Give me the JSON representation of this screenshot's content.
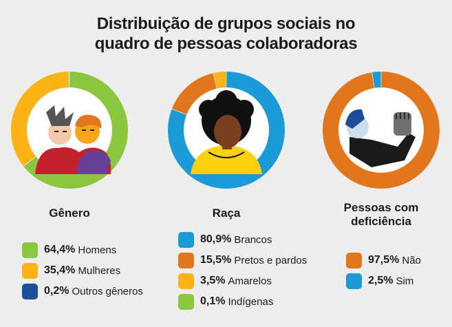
{
  "title_lines": [
    "Distribuição de grupos sociais no",
    "quadro de pessoas colaboradoras"
  ],
  "chart_data": [
    {
      "type": "pie",
      "title": "Gênero",
      "series": [
        {
          "name": "Homens",
          "value": 64.4,
          "label": "64,4%",
          "color": "#8cc63f"
        },
        {
          "name": "Mulheres",
          "value": 35.4,
          "label": "35,4%",
          "color": "#fbb316"
        },
        {
          "name": "Outros gêneros",
          "value": 0.2,
          "label": "0,2%",
          "color": "#1c4e9a"
        }
      ]
    },
    {
      "type": "pie",
      "title": "Raça",
      "series": [
        {
          "name": "Brancos",
          "value": 80.9,
          "label": "80,9%",
          "color": "#1a9ad6"
        },
        {
          "name": "Pretos e pardos",
          "value": 15.5,
          "label": "15,5%",
          "color": "#e2761c"
        },
        {
          "name": "Amarelos",
          "value": 3.5,
          "label": "3,5%",
          "color": "#fbb316"
        },
        {
          "name": "Indígenas",
          "value": 0.1,
          "label": "0,1%",
          "color": "#8cc63f"
        }
      ]
    },
    {
      "type": "pie",
      "title": "Pessoas com deficiência",
      "series": [
        {
          "name": "Não",
          "value": 97.5,
          "label": "97,5%",
          "color": "#e2761c"
        },
        {
          "name": "Sim",
          "value": 2.5,
          "label": "2,5%",
          "color": "#1a9ad6"
        }
      ]
    }
  ],
  "label_lines": [
    [
      "Gênero"
    ],
    [
      "Raça"
    ],
    [
      "Pessoas com",
      "deficiência"
    ]
  ],
  "illustration_icons": [
    "two-people-icon",
    "person-afro-hair-icon",
    "person-raised-fist-icon"
  ]
}
